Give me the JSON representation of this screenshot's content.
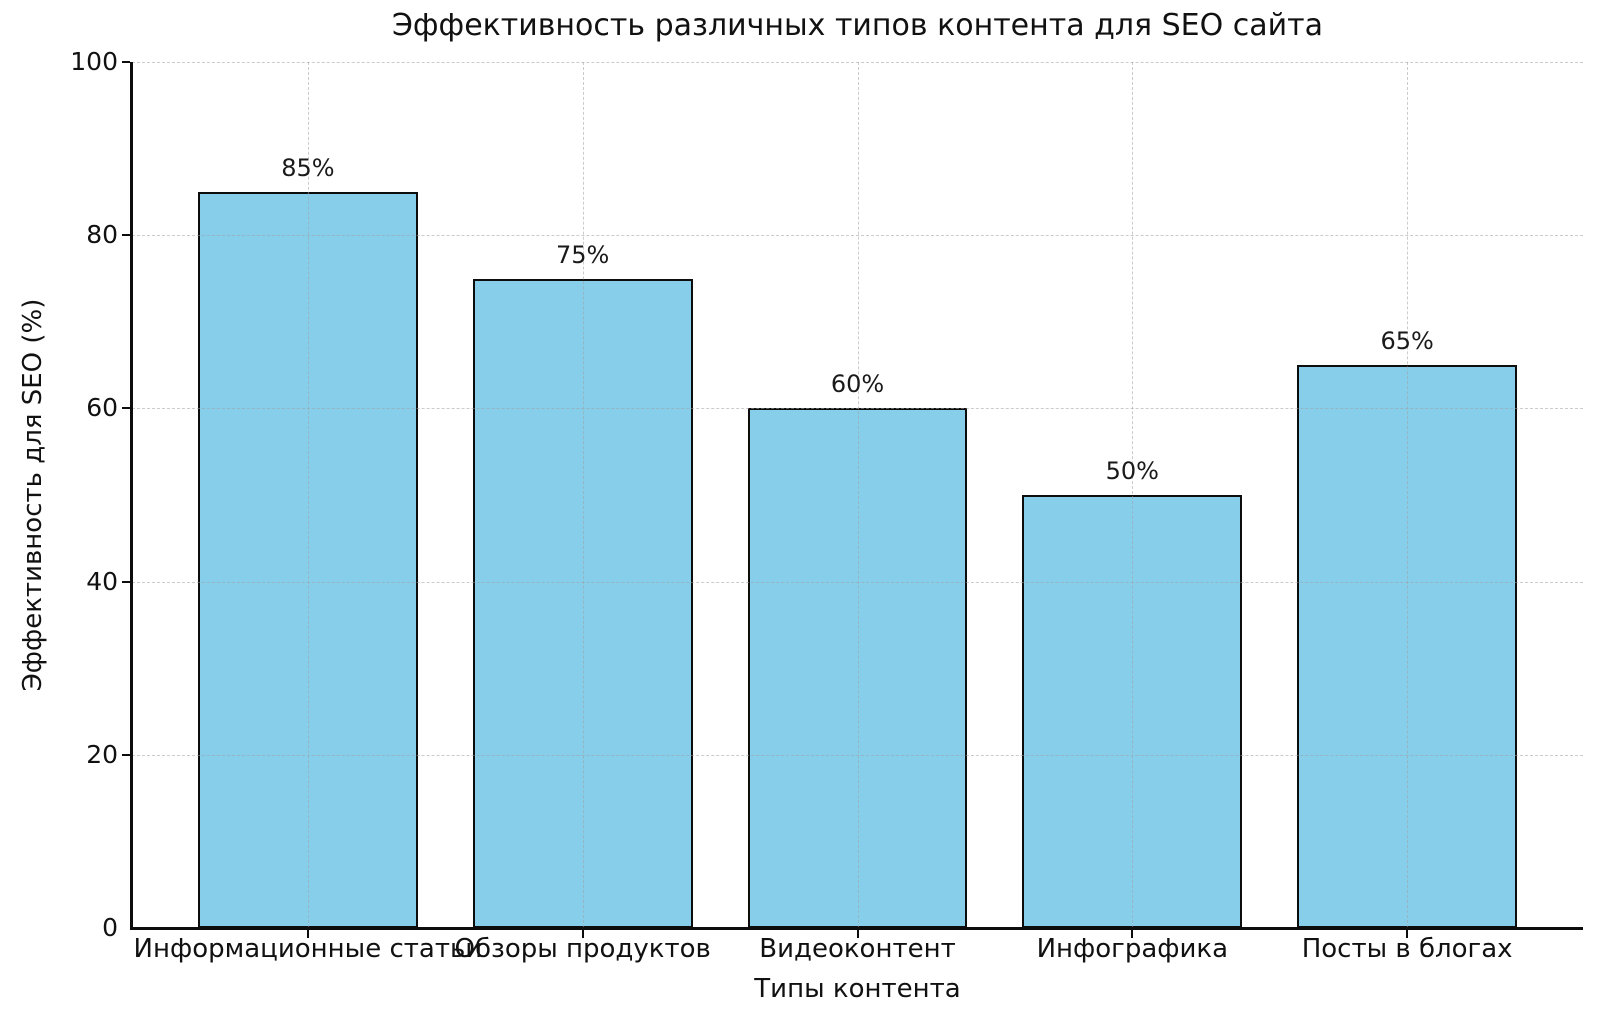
{
  "chart_data": {
    "type": "bar",
    "title": "Эффективность различных типов контента для SEO сайта",
    "xlabel": "Типы контента",
    "ylabel": "Эффективность для SEO (%)",
    "categories": [
      "Информационные статьи",
      "Обзоры продуктов",
      "Видеоконтент",
      "Инфографика",
      "Посты в блогах"
    ],
    "values": [
      85,
      75,
      60,
      50,
      65
    ],
    "value_labels": [
      "85%",
      "75%",
      "60%",
      "50%",
      "65%"
    ],
    "ylim": [
      0,
      100
    ],
    "yticks": [
      0,
      20,
      40,
      60,
      80,
      100
    ],
    "legend": "none",
    "grid": "dashed, horizontal and vertical, drawn above bars",
    "colors": {
      "bar_fill": "#87CEEB",
      "bar_edge": "#0d0d0d",
      "grid_line": "#bdbdbd",
      "text": "#111111",
      "background": "#ffffff"
    }
  }
}
